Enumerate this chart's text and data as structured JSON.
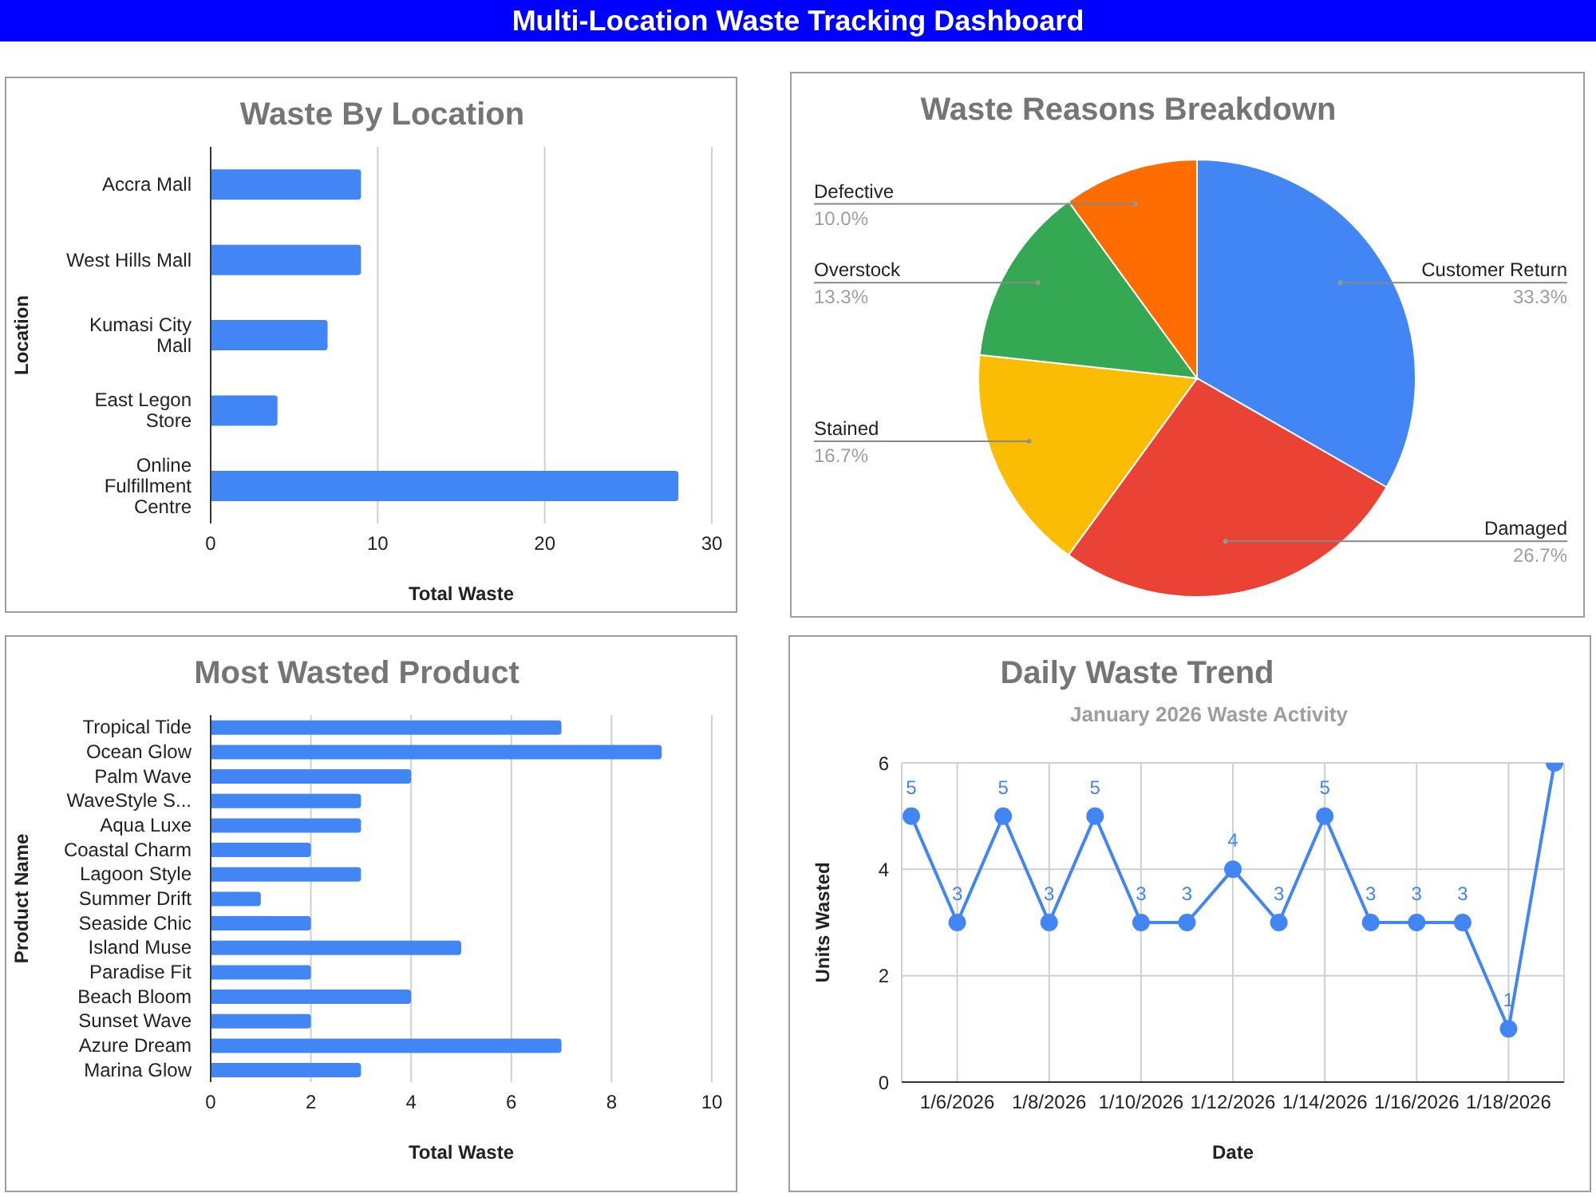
{
  "chart_data": [
    {
      "type": "other",
      "title": "Multi-Location Waste Tracking Dashboard"
    },
    {
      "type": "bar",
      "orientation": "horizontal",
      "title": "Waste By Location",
      "xlabel": "Total Waste",
      "ylabel": "Location",
      "categories": [
        "Accra Mall",
        "West Hills Mall",
        "Kumasi City Mall",
        "East Legon Store",
        "Online Fulfillment Centre"
      ],
      "values": [
        9,
        9,
        7,
        4,
        28
      ],
      "color": "#4285f4",
      "xlim": [
        0,
        30
      ],
      "xticks": [
        0,
        10,
        20,
        30
      ],
      "grid": "x"
    },
    {
      "type": "pie",
      "title": "Waste Reasons Breakdown",
      "categories": [
        "Customer Return",
        "Damaged",
        "Stained",
        "Overstock",
        "Defective"
      ],
      "values": [
        33.3,
        26.7,
        16.7,
        13.3,
        10.0
      ],
      "colors": [
        "#4285f4",
        "#ea4335",
        "#fbbc04",
        "#34a853",
        "#ff6d01"
      ],
      "value_labels": [
        "33.3%",
        "26.7%",
        "16.7%",
        "13.3%",
        "10.0%"
      ]
    },
    {
      "type": "bar",
      "orientation": "horizontal",
      "title": "Most Wasted Product",
      "xlabel": "Total Waste",
      "ylabel": "Product Name",
      "categories": [
        "Tropical Tide",
        "Ocean Glow",
        "Palm Wave",
        "WaveStyle S...",
        "Aqua Luxe",
        "Coastal Charm",
        "Lagoon Style",
        "Summer Drift",
        "Seaside Chic",
        "Island Muse",
        "Paradise Fit",
        "Beach Bloom",
        "Sunset Wave",
        "Azure Dream",
        "Marina Glow"
      ],
      "values": [
        7,
        9,
        4,
        3,
        3,
        2,
        3,
        1,
        2,
        5,
        2,
        4,
        2,
        7,
        3
      ],
      "color": "#4285f4",
      "xlim": [
        0,
        10
      ],
      "xticks": [
        0,
        2,
        4,
        6,
        8,
        10
      ],
      "grid": "x"
    },
    {
      "type": "line",
      "title": "Daily Waste Trend",
      "subtitle": "January 2026 Waste Activity",
      "xlabel": "Date",
      "ylabel": "Units Wasted",
      "x": [
        "2026-01-05",
        "2026-01-06",
        "2026-01-07",
        "2026-01-08",
        "2026-01-09",
        "2026-01-10",
        "2026-01-11",
        "2026-01-12",
        "2026-01-13",
        "2026-01-14",
        "2026-01-15",
        "2026-01-16",
        "2026-01-17",
        "2026-01-18",
        "2026-01-19"
      ],
      "values": [
        5,
        3,
        5,
        3,
        5,
        3,
        3,
        4,
        3,
        5,
        3,
        3,
        3,
        1,
        6
      ],
      "value_labels": [
        "5",
        "3",
        "5",
        "3",
        "5",
        "3",
        "3",
        "4",
        "3",
        "5",
        "3",
        "3",
        "3",
        "1",
        null
      ],
      "color": "#4285f4",
      "marker": "circle",
      "line_style": "solid",
      "xlim": [
        "2026-01-04T19:00",
        "2026-01-19T05:00"
      ],
      "xticks": [
        {
          "value": "2026-01-06",
          "label": "1/6/2026"
        },
        {
          "value": "2026-01-08",
          "label": "1/8/2026"
        },
        {
          "value": "2026-01-10",
          "label": "1/10/2026"
        },
        {
          "value": "2026-01-12",
          "label": "1/12/2026"
        },
        {
          "value": "2026-01-14",
          "label": "1/14/2026"
        },
        {
          "value": "2026-01-16",
          "label": "1/16/2026"
        },
        {
          "value": "2026-01-18",
          "label": "1/18/2026"
        }
      ],
      "ylim": [
        0,
        6
      ],
      "yticks": [
        0,
        2,
        4,
        6
      ],
      "grid": true
    }
  ]
}
